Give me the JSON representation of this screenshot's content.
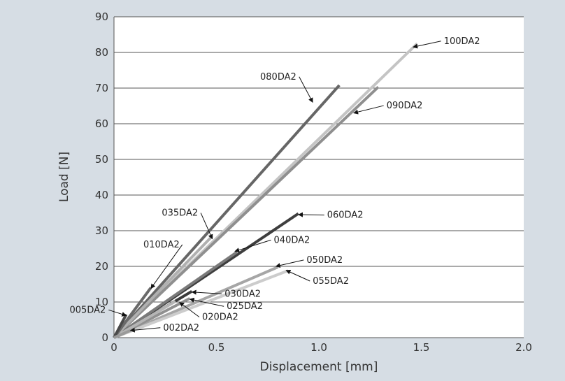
{
  "chart_data": {
    "type": "line",
    "title": "",
    "xlabel": "Displacement [mm]",
    "ylabel": "Load [N]",
    "xlim": [
      0,
      2.0
    ],
    "ylim": [
      0,
      90
    ],
    "x_ticks": [
      "0",
      "0.5",
      "1.0",
      "1.5",
      "2.0"
    ],
    "y_ticks": [
      "0",
      "10",
      "20",
      "30",
      "40",
      "50",
      "60",
      "70",
      "80",
      "90"
    ],
    "grid": "horizontal",
    "legend": "none",
    "series": [
      {
        "name": "100DA2",
        "color": "#c4c4c4",
        "x": [
          0,
          1.48
        ],
        "y": [
          0,
          82.5
        ]
      },
      {
        "name": "090DA2",
        "color": "#8f8f8f",
        "x": [
          0,
          1.29
        ],
        "y": [
          0,
          70.3
        ]
      },
      {
        "name": "080DA2",
        "color": "#666666",
        "x": [
          0,
          1.1
        ],
        "y": [
          0,
          70.8
        ]
      },
      {
        "name": "060DA2",
        "color": "#3e3e3e",
        "x": [
          0,
          0.9
        ],
        "y": [
          0,
          34.8
        ]
      },
      {
        "name": "040DA2",
        "color": "#7a7a7a",
        "x": [
          0,
          0.6
        ],
        "y": [
          0,
          24.0
        ]
      },
      {
        "name": "050DA2",
        "color": "#a6a6a6",
        "x": [
          0,
          0.8
        ],
        "y": [
          0,
          19.8
        ]
      },
      {
        "name": "055DA2",
        "color": "#cccccc",
        "x": [
          0,
          0.85
        ],
        "y": [
          0,
          18.8
        ]
      },
      {
        "name": "030DA2",
        "color": "#3a3a3a",
        "x": [
          0,
          0.38
        ],
        "y": [
          0,
          13.0
        ]
      },
      {
        "name": "025DA2",
        "color": "#909090",
        "x": [
          0,
          0.37
        ],
        "y": [
          0,
          11.0
        ]
      },
      {
        "name": "020DA2",
        "color": "#b5b5b5",
        "x": [
          0,
          0.3
        ],
        "y": [
          0,
          10.2
        ]
      },
      {
        "name": "035DA2",
        "color": "#b0b0b0",
        "x": [
          0,
          0.48
        ],
        "y": [
          0,
          28.5
        ]
      },
      {
        "name": "010DA2",
        "color": "#6a6a6a",
        "x": [
          0,
          0.18
        ],
        "y": [
          0,
          14.0
        ]
      },
      {
        "name": "005DA2",
        "color": "#4a4a4a",
        "x": [
          0,
          0.06
        ],
        "y": [
          0,
          6.5
        ]
      },
      {
        "name": "002DA2",
        "color": "#9a9a9a",
        "x": [
          0,
          0.08
        ],
        "y": [
          0,
          2.0
        ]
      }
    ],
    "annotations": [
      {
        "text": "100DA2",
        "point": [
          1.46,
          81.5
        ],
        "text_at": [
          1.61,
          82.4
        ],
        "anchor": "start"
      },
      {
        "text": "090DA2",
        "point": [
          1.17,
          63.0
        ],
        "text_at": [
          1.33,
          64.3
        ],
        "anchor": "start"
      },
      {
        "text": "080DA2",
        "point": [
          0.97,
          66.0
        ],
        "text_at": [
          0.89,
          72.4
        ],
        "anchor": "end"
      },
      {
        "text": "060DA2",
        "point": [
          0.9,
          34.5
        ],
        "text_at": [
          1.04,
          33.6
        ],
        "anchor": "start"
      },
      {
        "text": "040DA2",
        "point": [
          0.59,
          24.2
        ],
        "text_at": [
          0.78,
          26.6
        ],
        "anchor": "start"
      },
      {
        "text": "035DA2",
        "point": [
          0.48,
          27.7
        ],
        "text_at": [
          0.41,
          34.2
        ],
        "anchor": "end"
      },
      {
        "text": "050DA2",
        "point": [
          0.79,
          20.0
        ],
        "text_at": [
          0.94,
          21.0
        ],
        "anchor": "start"
      },
      {
        "text": "055DA2",
        "point": [
          0.84,
          18.9
        ],
        "text_at": [
          0.97,
          15.1
        ],
        "anchor": "start"
      },
      {
        "text": "030DA2",
        "point": [
          0.38,
          12.8
        ],
        "text_at": [
          0.54,
          11.5
        ],
        "anchor": "start"
      },
      {
        "text": "025DA2",
        "point": [
          0.37,
          10.8
        ],
        "text_at": [
          0.55,
          8.0
        ],
        "anchor": "start"
      },
      {
        "text": "020DA2",
        "point": [
          0.32,
          9.9
        ],
        "text_at": [
          0.43,
          5.0
        ],
        "anchor": "start"
      },
      {
        "text": "010DA2",
        "point": [
          0.18,
          13.8
        ],
        "text_at": [
          0.32,
          25.3
        ],
        "anchor": "end"
      },
      {
        "text": "005DA2",
        "point": [
          0.06,
          6.2
        ],
        "text_at": [
          -0.04,
          7.0
        ],
        "anchor": "end"
      },
      {
        "text": "002DA2",
        "point": [
          0.08,
          2.0
        ],
        "text_at": [
          0.24,
          2.0
        ],
        "anchor": "start"
      }
    ]
  }
}
